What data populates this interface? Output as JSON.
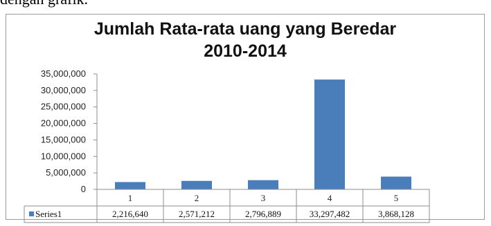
{
  "header_text": "dengan grafik.",
  "chart_data": {
    "type": "bar",
    "title_line1": "Jumlah  Rata-rata uang yang Beredar",
    "title_line2": "2010-2014",
    "categories": [
      "1",
      "2",
      "3",
      "4",
      "5"
    ],
    "series": [
      {
        "name": "Series1",
        "values": [
          2216640,
          2571212,
          2796889,
          33297482,
          3868128
        ],
        "labels": [
          "2,216,640",
          "2,571,212",
          "2,796,889",
          "33,297,482",
          "3,868,128"
        ]
      }
    ],
    "ylim": [
      0,
      35000000
    ],
    "yticks": [
      0,
      5000000,
      10000000,
      15000000,
      20000000,
      25000000,
      30000000,
      35000000
    ],
    "ytick_labels": [
      "0",
      "5,000,000",
      "10,000,000",
      "15,000,000",
      "20,000,000",
      "25,000,000",
      "30,000,000",
      "35,000,000"
    ],
    "colors": {
      "bar": "#4a7ebb",
      "axis": "#8c8c8c",
      "table_border": "#8c8c8c"
    },
    "grid": false,
    "legend": "data-table"
  }
}
